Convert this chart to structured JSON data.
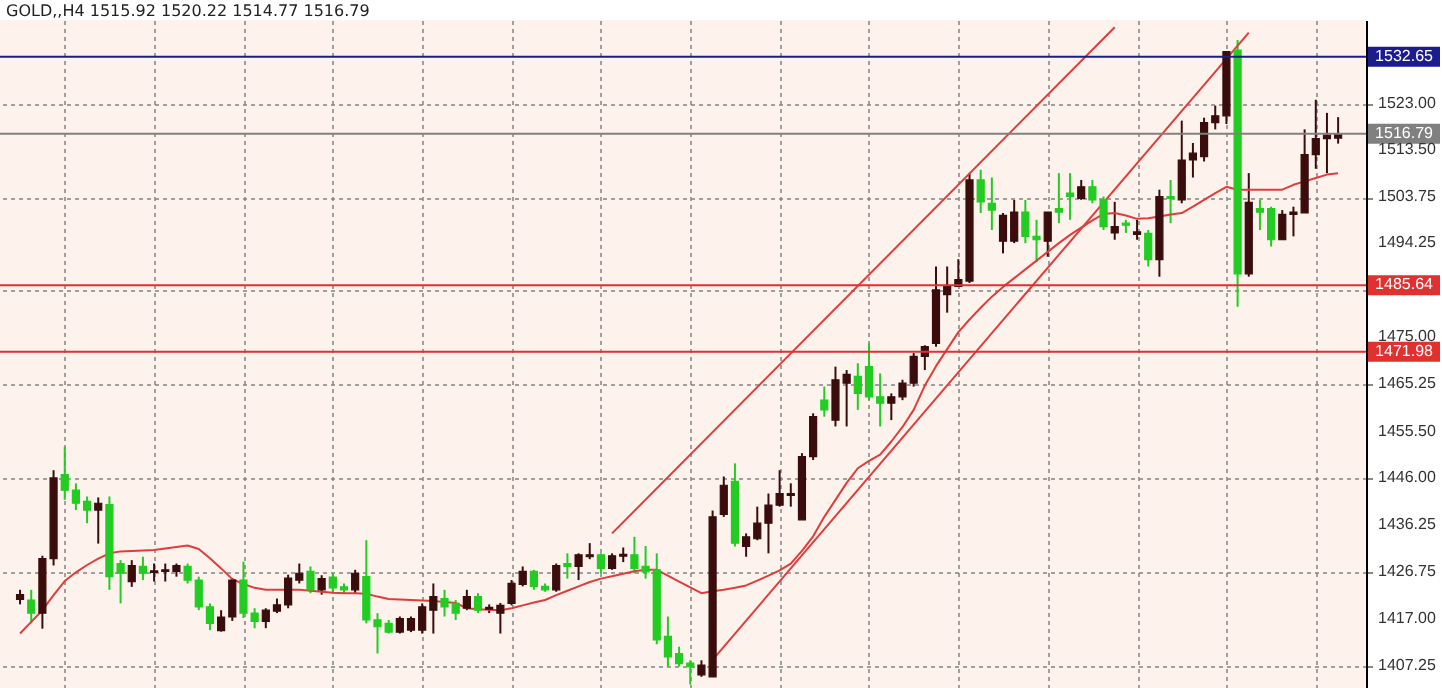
{
  "chart_data": {
    "type": "candlestick",
    "title": "GOLD,,H4  1515.92 1520.22 1514.77 1516.79",
    "categories": [
      null,
      null,
      null,
      null,
      null,
      null,
      null,
      null,
      null,
      null,
      null,
      null,
      null,
      null,
      null,
      null,
      null,
      null,
      null,
      null,
      null,
      null,
      null,
      null,
      null,
      null,
      null,
      null,
      null,
      null,
      null,
      null,
      null,
      null,
      null,
      null,
      null,
      null,
      null,
      null,
      null,
      null,
      null,
      null,
      null,
      null,
      null,
      null,
      null,
      null,
      null,
      null,
      null,
      null,
      null,
      null,
      null,
      null,
      null,
      null,
      null,
      null,
      null,
      null,
      null,
      null,
      null,
      null,
      null,
      null,
      null,
      null,
      null,
      null,
      null,
      null,
      null,
      null,
      null,
      null,
      null,
      null,
      null,
      null,
      null,
      null,
      null,
      null,
      null,
      null,
      null,
      null,
      null,
      null,
      null,
      null,
      null,
      null,
      null,
      null,
      null,
      null,
      null,
      null,
      null,
      null,
      null,
      null,
      null,
      null,
      null,
      null,
      null,
      null,
      null,
      null,
      null,
      null,
      null
    ],
    "ohlc": [
      [
        1421.0,
        1423.0,
        1420.0,
        1422.0
      ],
      [
        1420.9,
        1423.0,
        1416.1,
        1418.2
      ],
      [
        1418.2,
        1430.0,
        1415.0,
        1429.4
      ],
      [
        1429.4,
        1447.6,
        1428.0,
        1446.0
      ],
      [
        1446.7,
        1452.4,
        1441.5,
        1443.5
      ],
      [
        1443.5,
        1444.9,
        1439.4,
        1440.8
      ],
      [
        1441.2,
        1442.2,
        1436.7,
        1439.4
      ],
      [
        1439.4,
        1442.0,
        1432.5,
        1440.8
      ],
      [
        1440.5,
        1442.2,
        1423.0,
        1425.7
      ],
      [
        1428.4,
        1429.1,
        1420.2,
        1426.4
      ],
      [
        1424.7,
        1429.1,
        1423.6,
        1428.0
      ],
      [
        1427.8,
        1429.8,
        1425.0,
        1426.4
      ],
      [
        1426.6,
        1428.4,
        1424.7,
        1426.9
      ],
      [
        1426.8,
        1428.4,
        1424.7,
        1427.1
      ],
      [
        1426.8,
        1428.4,
        1425.7,
        1428.0
      ],
      [
        1427.8,
        1428.4,
        1424.3,
        1425.0
      ],
      [
        1425.0,
        1425.7,
        1418.8,
        1419.5
      ],
      [
        1419.5,
        1420.2,
        1414.7,
        1416.1
      ],
      [
        1414.6,
        1418.8,
        1414.4,
        1417.4
      ],
      [
        1417.4,
        1425.4,
        1416.6,
        1425.0
      ],
      [
        1425.0,
        1428.8,
        1417.2,
        1418.2
      ],
      [
        1418.2,
        1419.2,
        1415.1,
        1416.5
      ],
      [
        1416.5,
        1419.2,
        1415.1,
        1418.8
      ],
      [
        1418.6,
        1421.2,
        1418.2,
        1419.9
      ],
      [
        1419.9,
        1426.1,
        1419.2,
        1425.4
      ],
      [
        1425.0,
        1428.4,
        1424.3,
        1426.4
      ],
      [
        1426.8,
        1427.8,
        1422.3,
        1423.0
      ],
      [
        1423.0,
        1426.0,
        1422.0,
        1425.3
      ],
      [
        1425.6,
        1426.4,
        1422.3,
        1423.4
      ],
      [
        1423.6,
        1424.3,
        1422.3,
        1423.0
      ],
      [
        1423.0,
        1427.1,
        1422.3,
        1426.4
      ],
      [
        1425.7,
        1433.2,
        1416.1,
        1416.8
      ],
      [
        1416.8,
        1418.2,
        1409.9,
        1415.4
      ],
      [
        1416.1,
        1416.8,
        1414.0,
        1414.3
      ],
      [
        1414.3,
        1417.5,
        1414.0,
        1417.1
      ],
      [
        1414.7,
        1417.5,
        1414.3,
        1417.1
      ],
      [
        1414.7,
        1420.2,
        1414.0,
        1419.5
      ],
      [
        1418.8,
        1424.3,
        1414.0,
        1421.6
      ],
      [
        1421.2,
        1423.0,
        1417.5,
        1419.5
      ],
      [
        1420.2,
        1420.9,
        1416.8,
        1418.2
      ],
      [
        1419.2,
        1423.0,
        1418.8,
        1421.6
      ],
      [
        1421.6,
        1422.3,
        1418.2,
        1418.8
      ],
      [
        1419.0,
        1420.0,
        1418.2,
        1419.4
      ],
      [
        1418.2,
        1420.3,
        1414.0,
        1419.8
      ],
      [
        1420.2,
        1425.0,
        1419.8,
        1424.3
      ],
      [
        1424.1,
        1427.8,
        1423.7,
        1426.8
      ],
      [
        1426.8,
        1427.1,
        1423.0,
        1423.7
      ],
      [
        1423.7,
        1424.3,
        1422.6,
        1423.0
      ],
      [
        1423.0,
        1428.4,
        1422.6,
        1428.0
      ],
      [
        1428.4,
        1430.5,
        1425.3,
        1427.8
      ],
      [
        1427.8,
        1430.5,
        1425.0,
        1430.2
      ],
      [
        1429.8,
        1432.6,
        1429.3,
        1430.2
      ],
      [
        1430.2,
        1430.5,
        1426.4,
        1427.4
      ],
      [
        1427.4,
        1430.5,
        1427.1,
        1430.0
      ],
      [
        1429.9,
        1431.7,
        1428.7,
        1430.3
      ],
      [
        1430.2,
        1433.9,
        1426.4,
        1427.4
      ],
      [
        1427.8,
        1432.0,
        1425.3,
        1426.7
      ],
      [
        1427.1,
        1430.5,
        1411.8,
        1412.7
      ],
      [
        1413.4,
        1417.5,
        1407.2,
        1409.2
      ],
      [
        1409.9,
        1411.3,
        1407.2,
        1407.8
      ],
      [
        1407.9,
        1408.5,
        1403.5,
        1407.2
      ],
      [
        1405.5,
        1408.5,
        1405.1,
        1407.5
      ],
      [
        1405.1,
        1439.3,
        1405.1,
        1438.0
      ],
      [
        1438.5,
        1446.3,
        1438.0,
        1444.5
      ],
      [
        1445.3,
        1449.0,
        1431.9,
        1432.6
      ],
      [
        1431.9,
        1434.6,
        1429.8,
        1433.9
      ],
      [
        1433.5,
        1440.1,
        1433.2,
        1436.7
      ],
      [
        1436.7,
        1442.8,
        1430.5,
        1440.4
      ],
      [
        1440.4,
        1447.6,
        1440.1,
        1442.8
      ],
      [
        1442.4,
        1444.9,
        1440.1,
        1442.8
      ],
      [
        1437.4,
        1451.1,
        1437.4,
        1450.4
      ],
      [
        1450.4,
        1459.3,
        1449.7,
        1458.6
      ],
      [
        1462.0,
        1464.8,
        1458.6,
        1460.0
      ],
      [
        1457.9,
        1468.9,
        1456.6,
        1466.2
      ],
      [
        1465.5,
        1468.2,
        1456.6,
        1467.3
      ],
      [
        1466.9,
        1469.6,
        1460.0,
        1463.4
      ],
      [
        1468.9,
        1473.7,
        1462.0,
        1462.7
      ],
      [
        1462.7,
        1467.5,
        1456.6,
        1461.4
      ],
      [
        1461.4,
        1463.4,
        1457.9,
        1462.7
      ],
      [
        1462.7,
        1466.2,
        1462.0,
        1465.5
      ],
      [
        1465.5,
        1471.7,
        1464.8,
        1471.0
      ],
      [
        1471.0,
        1473.3,
        1468.2,
        1473.0
      ],
      [
        1473.7,
        1489.5,
        1473.0,
        1484.7
      ],
      [
        1483.7,
        1489.5,
        1480.0,
        1485.4
      ],
      [
        1485.4,
        1491.0,
        1485.4,
        1486.8
      ],
      [
        1486.5,
        1508.7,
        1486.1,
        1507.3
      ],
      [
        1507.3,
        1509.4,
        1500.5,
        1502.8
      ],
      [
        1502.5,
        1507.8,
        1497.0,
        1501.1
      ],
      [
        1494.7,
        1500.5,
        1492.2,
        1500.0
      ],
      [
        1494.7,
        1503.2,
        1494.3,
        1500.7
      ],
      [
        1500.7,
        1503.2,
        1494.3,
        1495.7
      ],
      [
        1495.7,
        1499.1,
        1490.4,
        1495.0
      ],
      [
        1494.7,
        1500.7,
        1491.5,
        1500.7
      ],
      [
        1501.4,
        1508.7,
        1498.4,
        1500.7
      ],
      [
        1504.6,
        1508.7,
        1499.1,
        1503.9
      ],
      [
        1503.5,
        1507.3,
        1503.2,
        1505.9
      ],
      [
        1505.9,
        1507.3,
        1502.5,
        1503.2
      ],
      [
        1503.2,
        1503.9,
        1497.0,
        1497.7
      ],
      [
        1496.4,
        1502.8,
        1495.0,
        1497.7
      ],
      [
        1498.4,
        1499.1,
        1496.4,
        1498.0
      ],
      [
        1496.1,
        1499.1,
        1495.0,
        1496.6
      ],
      [
        1496.3,
        1497.0,
        1489.5,
        1490.9
      ],
      [
        1490.9,
        1505.3,
        1487.4,
        1503.9
      ],
      [
        1503.9,
        1507.3,
        1498.4,
        1503.5
      ],
      [
        1503.2,
        1519.5,
        1502.5,
        1511.4
      ],
      [
        1511.4,
        1514.9,
        1507.8,
        1512.8
      ],
      [
        1512.1,
        1520.1,
        1511.1,
        1519.1
      ],
      [
        1519.1,
        1522.6,
        1517.7,
        1520.5
      ],
      [
        1520.5,
        1533.7,
        1518.8,
        1533.7
      ],
      [
        1534.0,
        1536.1,
        1481.2,
        1488.0
      ],
      [
        1488.0,
        1508.7,
        1487.4,
        1502.7
      ],
      [
        1501.4,
        1503.2,
        1497.0,
        1500.7
      ],
      [
        1501.4,
        1501.8,
        1493.6,
        1495.0
      ],
      [
        1495.0,
        1501.1,
        1495.0,
        1500.2
      ],
      [
        1500.2,
        1501.8,
        1495.7,
        1500.7
      ],
      [
        1500.5,
        1517.7,
        1500.5,
        1512.5
      ],
      [
        1512.5,
        1523.8,
        1509.6,
        1515.8
      ],
      [
        1515.8,
        1521.1,
        1508.7,
        1516.5
      ],
      [
        1515.92,
        1520.22,
        1514.77,
        1516.79
      ]
    ],
    "colors": [
      "#3a0c0c",
      "#22cc22",
      "#3a0c0c",
      "#3a0c0c",
      "#22cc22",
      "#22cc22",
      "#22cc22",
      "#3a0c0c",
      "#22cc22",
      "#22cc22",
      "#3a0c0c",
      "#22cc22",
      "#3a0c0c",
      "#3a0c0c",
      "#3a0c0c",
      "#22cc22",
      "#22cc22",
      "#22cc22",
      "#3a0c0c",
      "#3a0c0c",
      "#22cc22",
      "#22cc22",
      "#3a0c0c",
      "#3a0c0c",
      "#3a0c0c",
      "#3a0c0c",
      "#22cc22",
      "#3a0c0c",
      "#22cc22",
      "#22cc22",
      "#3a0c0c",
      "#22cc22",
      "#22cc22",
      "#22cc22",
      "#3a0c0c",
      "#3a0c0c",
      "#3a0c0c",
      "#3a0c0c",
      "#22cc22",
      "#22cc22",
      "#3a0c0c",
      "#22cc22",
      "#3a0c0c",
      "#3a0c0c",
      "#3a0c0c",
      "#3a0c0c",
      "#22cc22",
      "#22cc22",
      "#3a0c0c",
      "#22cc22",
      "#3a0c0c",
      "#3a0c0c",
      "#22cc22",
      "#3a0c0c",
      "#3a0c0c",
      "#22cc22",
      "#22cc22",
      "#22cc22",
      "#22cc22",
      "#22cc22",
      "#22cc22",
      "#3a0c0c",
      "#3a0c0c",
      "#3a0c0c",
      "#22cc22",
      "#3a0c0c",
      "#3a0c0c",
      "#3a0c0c",
      "#3a0c0c",
      "#3a0c0c",
      "#3a0c0c",
      "#3a0c0c",
      "#22cc22",
      "#3a0c0c",
      "#3a0c0c",
      "#22cc22",
      "#22cc22",
      "#22cc22",
      "#3a0c0c",
      "#3a0c0c",
      "#3a0c0c",
      "#3a0c0c",
      "#3a0c0c",
      "#3a0c0c",
      "#3a0c0c",
      "#3a0c0c",
      "#22cc22",
      "#22cc22",
      "#3a0c0c",
      "#3a0c0c",
      "#22cc22",
      "#22cc22",
      "#3a0c0c",
      "#22cc22",
      "#22cc22",
      "#3a0c0c",
      "#22cc22",
      "#22cc22",
      "#3a0c0c",
      "#22cc22",
      "#3a0c0c",
      "#22cc22",
      "#3a0c0c",
      "#22cc22",
      "#3a0c0c",
      "#3a0c0c",
      "#3a0c0c",
      "#3a0c0c",
      "#3a0c0c",
      "#22cc22",
      "#3a0c0c",
      "#22cc22",
      "#22cc22",
      "#3a0c0c",
      "#3a0c0c",
      "#3a0c0c",
      "#3a0c0c",
      "#3a0c0c",
      "#3a0c0c"
    ],
    "series": [
      {
        "type": "line",
        "color": "#e03c3c",
        "values": [
          1414.0,
          1416.4,
          1418.8,
          1421.9,
          1424.8,
          1426.6,
          1428.1,
          1429.4,
          1430.5,
          1430.9,
          1431.0,
          1431.1,
          1431.2,
          1431.5,
          1431.8,
          1432.1,
          1431.4,
          1429.5,
          1427.4,
          1425.2,
          1424.2,
          1423.4,
          1423.0,
          1423.0,
          1423.0,
          1423.0,
          1422.8,
          1422.6,
          1422.4,
          1422.3,
          1422.3,
          1422.2,
          1421.6,
          1421.1,
          1421.0,
          1420.9,
          1420.8,
          1420.7,
          1420.5,
          1420.3,
          1419.2,
          1419.0,
          1418.9,
          1418.8,
          1419.2,
          1419.8,
          1420.4,
          1420.9,
          1421.9,
          1422.8,
          1423.7,
          1424.6,
          1425.3,
          1425.8,
          1426.3,
          1426.8,
          1427.1,
          1427.1,
          1425.9,
          1424.7,
          1423.5,
          1422.3,
          1422.7,
          1423.0,
          1423.4,
          1423.9,
          1424.9,
          1425.9,
          1427.0,
          1428.4,
          1431.0,
          1434.0,
          1438.0,
          1441.5,
          1445.0,
          1448.0,
          1449.5,
          1450.8,
          1453.5,
          1456.5,
          1460.0,
          1465.0,
          1469.0,
          1472.5,
          1476.0,
          1478.6,
          1481.0,
          1483.3,
          1485.3,
          1487.1,
          1488.9,
          1490.7,
          1492.5,
          1494.3,
          1496.0,
          1497.5,
          1499.0,
          1500.3,
          1500.5,
          1500.0,
          1499.3,
          1499.4,
          1499.8,
          1500.2,
          1500.5,
          1501.8,
          1503.2,
          1504.6,
          1505.9,
          1505.3,
          1505.3,
          1505.3,
          1505.3,
          1505.3,
          1506.3,
          1507.0,
          1507.7,
          1508.4,
          1508.7
        ]
      },
      {
        "type": "line",
        "color": "#e03c3c",
        "values": [
          null,
          null,
          null,
          null,
          null,
          null,
          null,
          null,
          null,
          null,
          null,
          null,
          null,
          null,
          null,
          null,
          null,
          null,
          null,
          null,
          null,
          null,
          null,
          null,
          null,
          null,
          null,
          null,
          null,
          null,
          null,
          null,
          null,
          null,
          null,
          null,
          null,
          null,
          null,
          null,
          null,
          null,
          null,
          null,
          null,
          null,
          null,
          null,
          null,
          null,
          null,
          null,
          null,
          1434.6,
          null,
          null,
          null,
          null,
          null,
          null,
          null,
          null,
          null,
          null,
          null,
          null,
          null,
          null,
          null,
          null,
          null,
          null,
          null,
          null,
          null,
          null,
          null,
          null,
          null,
          null,
          null,
          null,
          null,
          null,
          null,
          null,
          null,
          null,
          null,
          null,
          null,
          null,
          null,
          null,
          null,
          null,
          null,
          null,
          1538.7,
          null,
          null,
          null,
          null,
          null,
          null,
          null,
          null,
          null,
          null,
          null,
          null,
          null,
          null,
          null,
          null,
          null,
          null,
          null,
          null
        ]
      },
      {
        "type": "line",
        "color": "#e03c3c",
        "values": [
          null,
          null,
          null,
          null,
          null,
          null,
          null,
          null,
          null,
          null,
          null,
          null,
          null,
          null,
          null,
          null,
          null,
          null,
          null,
          null,
          null,
          null,
          null,
          null,
          null,
          null,
          null,
          null,
          null,
          null,
          null,
          null,
          null,
          null,
          null,
          null,
          null,
          null,
          null,
          null,
          null,
          null,
          null,
          null,
          null,
          null,
          null,
          null,
          null,
          null,
          null,
          null,
          null,
          null,
          null,
          null,
          null,
          null,
          null,
          null,
          null,
          null,
          1408.6,
          null,
          null,
          null,
          null,
          null,
          null,
          null,
          null,
          null,
          null,
          null,
          null,
          null,
          null,
          null,
          null,
          null,
          null,
          null,
          null,
          null,
          null,
          null,
          null,
          null,
          null,
          null,
          null,
          null,
          null,
          null,
          null,
          null,
          null,
          null,
          null,
          null,
          null,
          null,
          null,
          null,
          null,
          null,
          null,
          null,
          null,
          null,
          1537.6,
          null,
          null,
          null,
          null,
          null,
          null,
          null,
          null
        ]
      }
    ],
    "ylim": [
      1402.8,
      1540.2
    ],
    "yticks": [
      {
        "value": 1523.0,
        "label": "1523.00"
      },
      {
        "value": 1513.5,
        "label": "1513.50"
      },
      {
        "value": 1503.75,
        "label": "1503.75"
      },
      {
        "value": 1494.25,
        "label": "1494.25"
      },
      {
        "value": 1484.5,
        "label": null
      },
      {
        "value": 1475.0,
        "label": "1475.00"
      },
      {
        "value": 1465.25,
        "label": "1465.25"
      },
      {
        "value": 1455.5,
        "label": "1455.50"
      },
      {
        "value": 1446.0,
        "label": "1446.00"
      },
      {
        "value": 1436.25,
        "label": "1436.25"
      },
      {
        "value": 1426.75,
        "label": "1426.75"
      },
      {
        "value": 1417.0,
        "label": "1417.00"
      },
      {
        "value": 1407.25,
        "label": "1407.25"
      }
    ],
    "ref_lines": [
      {
        "axis": "y",
        "value": 1532.65,
        "label": "1532.65",
        "color": "#1c1c8c"
      },
      {
        "axis": "y",
        "value": 1516.79,
        "label": "1516.79",
        "color": "#808080"
      },
      {
        "axis": "y",
        "value": 1485.64,
        "label": "1485.64",
        "color": "#e03030"
      },
      {
        "axis": "y",
        "value": 1471.98,
        "label": "1471.98",
        "color": "#e03030"
      }
    ],
    "grid": true,
    "tick_labels": "y"
  }
}
